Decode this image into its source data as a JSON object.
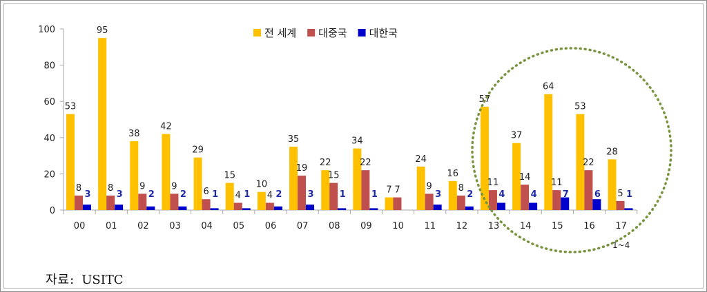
{
  "source": {
    "label": "자료:",
    "value": "USITC"
  },
  "colors": {
    "world": "#FFC000",
    "china": "#C0504D",
    "korea": "#0000CC",
    "circle": "#77933C",
    "grid": "#a6a6a6"
  },
  "chart_data": {
    "type": "bar",
    "categories": [
      "00",
      "01",
      "02",
      "03",
      "04",
      "05",
      "06",
      "07",
      "08",
      "09",
      "10",
      "11",
      "12",
      "13",
      "14",
      "15",
      "16",
      "17"
    ],
    "category_sublabels": {
      "17": "1~4"
    },
    "ylim": [
      0,
      100
    ],
    "yticks": [
      0,
      20,
      40,
      60,
      80,
      100
    ],
    "legend_position": "top",
    "series": [
      {
        "name": "전 세계",
        "values": [
          53,
          95,
          38,
          42,
          29,
          15,
          10,
          35,
          22,
          34,
          7,
          24,
          16,
          57,
          37,
          64,
          53,
          28
        ],
        "labels": [
          "53",
          "95",
          "38",
          "42",
          "29",
          "15",
          "10",
          "35",
          "22",
          "34",
          "7",
          "24",
          "16",
          "57",
          "37",
          "64",
          "53",
          "28"
        ]
      },
      {
        "name": "대중국",
        "values": [
          8,
          8,
          9,
          9,
          6,
          4,
          4,
          19,
          15,
          22,
          7,
          9,
          8,
          11,
          14,
          11,
          22,
          5
        ],
        "labels": [
          "8",
          "8",
          "9",
          "9",
          "6",
          "4",
          "4",
          "19",
          "15",
          "22",
          "7",
          "9",
          "8",
          "11",
          "14",
          "11",
          "22",
          "5"
        ]
      },
      {
        "name": "대한국",
        "values": [
          3,
          3,
          2,
          2,
          1,
          1,
          2,
          3,
          1,
          1,
          0,
          3,
          2,
          4,
          4,
          7,
          6,
          1
        ],
        "labels": [
          "3",
          "3",
          "2",
          "2",
          "1",
          "1",
          "2",
          "3",
          "1",
          "1",
          "",
          "3",
          "2",
          "4",
          "4",
          "7",
          "6",
          "1"
        ]
      }
    ],
    "annotations": [
      {
        "type": "dotted-ellipse",
        "covers_categories": [
          "13",
          "14",
          "15",
          "16",
          "17"
        ]
      }
    ]
  }
}
